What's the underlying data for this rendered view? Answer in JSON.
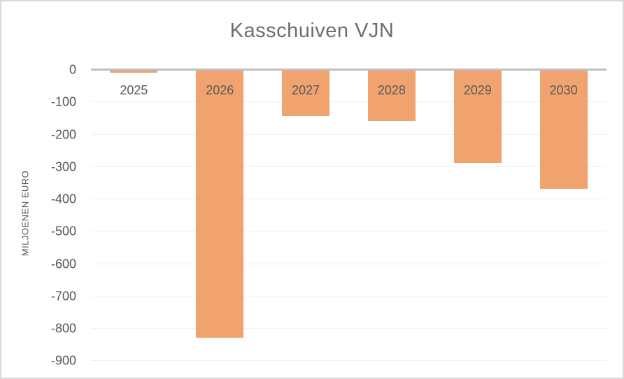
{
  "chart_data": {
    "type": "bar",
    "title": "Kasschuiven VJN",
    "categories": [
      "2025",
      "2026",
      "2027",
      "2028",
      "2029",
      "2030"
    ],
    "values": [
      -10,
      -830,
      -145,
      -160,
      -290,
      -370
    ],
    "xlabel": "",
    "ylabel": "MILJOENEN EURO",
    "ylim": [
      -900,
      0
    ],
    "yticks": [
      0,
      -100,
      -200,
      -300,
      -400,
      -500,
      -600,
      -700,
      -800,
      -900
    ],
    "grid": "horizontal",
    "legend": "none",
    "bar_color": "#F0A36E",
    "axis_line_color": "#BFBFBF",
    "gridline_color": "#F0F0F0",
    "tick_label_color": "#595959",
    "title_color": "#6E6E6E",
    "border_color": "#D9D9D9",
    "background_color": "#FFFFFF"
  }
}
